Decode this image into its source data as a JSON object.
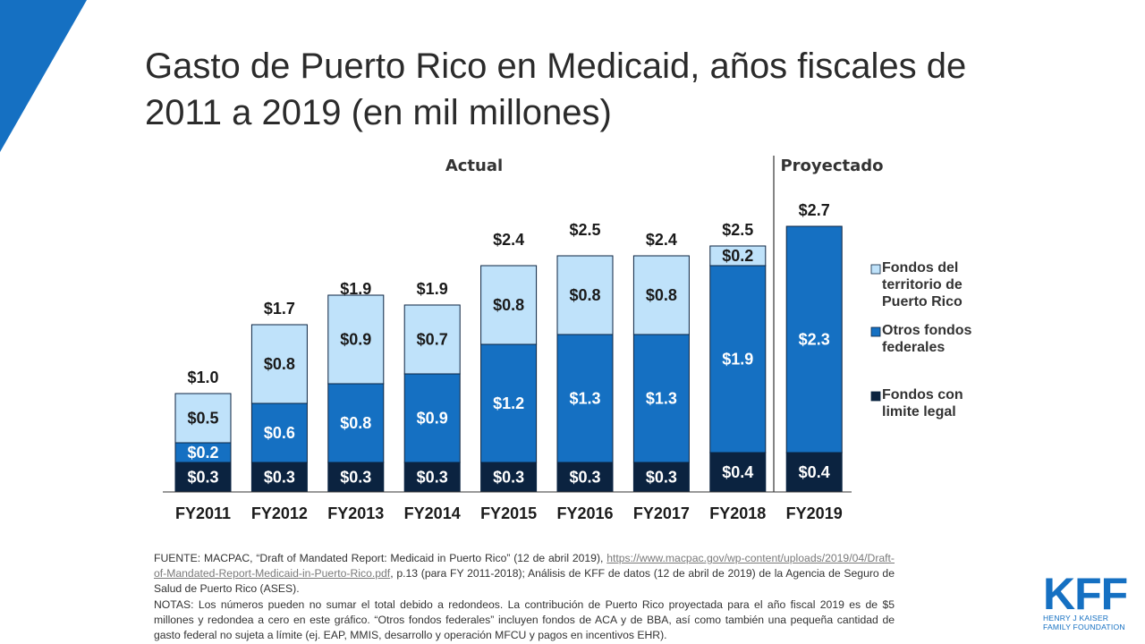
{
  "title": "Gasto de Puerto Rico en Medicaid, años fiscales de 2011 a 2019 (en mil millones)",
  "chart_data": {
    "type": "bar",
    "stacked": true,
    "title": "Gasto de Puerto Rico en Medicaid, años fiscales de 2011 a 2019 (en mil millones)",
    "categories": [
      "FY2011",
      "FY2012",
      "FY2013",
      "FY2014",
      "FY2015",
      "FY2016",
      "FY2017",
      "FY2018",
      "FY2019"
    ],
    "sections": [
      {
        "label": "Actual",
        "categories": [
          "FY2011",
          "FY2012",
          "FY2013",
          "FY2014",
          "FY2015",
          "FY2016",
          "FY2017",
          "FY2018"
        ]
      },
      {
        "label": "Proyectado",
        "categories": [
          "FY2019"
        ]
      }
    ],
    "series": [
      {
        "name": "Fondos con limite legal",
        "color": "#0b2340",
        "text_color": "#ffffff",
        "values": [
          0.3,
          0.3,
          0.3,
          0.3,
          0.3,
          0.3,
          0.3,
          0.4,
          0.4
        ],
        "labels": [
          "$0.3",
          "$0.3",
          "$0.3",
          "$0.3",
          "$0.3",
          "$0.3",
          "$0.3",
          "$0.4",
          "$0.4"
        ]
      },
      {
        "name": "Otros fondos federales",
        "color": "#1570c2",
        "text_color": "#ffffff",
        "values": [
          0.2,
          0.6,
          0.8,
          0.9,
          1.2,
          1.3,
          1.3,
          1.9,
          2.3
        ],
        "labels": [
          "$0.2",
          "$0.6",
          "$0.8",
          "$0.9",
          "$1.2",
          "$1.3",
          "$1.3",
          "$1.9",
          "$2.3"
        ]
      },
      {
        "name": "Fondos del territorio de Puerto Rico",
        "color": "#bfe2fa",
        "text_color": "#1a1a1a",
        "values": [
          0.5,
          0.8,
          0.9,
          0.7,
          0.8,
          0.8,
          0.8,
          0.2,
          0.0
        ],
        "labels": [
          "$0.5",
          "$0.8",
          "$0.9",
          "$0.7",
          "$0.8",
          "$0.8",
          "$0.8",
          "$0.2",
          ""
        ]
      }
    ],
    "totals": [
      1.0,
      1.7,
      1.9,
      1.9,
      2.4,
      2.5,
      2.4,
      2.5,
      2.7
    ],
    "total_labels": [
      "$1.0",
      "$1.7",
      "$1.9",
      "$1.9",
      "$2.4",
      "$2.5",
      "$2.4",
      "$2.5",
      "$2.7"
    ],
    "ylim": [
      0,
      2.8
    ],
    "xlabel": "",
    "ylabel": "",
    "legend": {
      "placement": "right",
      "items": [
        {
          "lines": [
            "Fondos del",
            "territorio de",
            "Puerto Rico"
          ],
          "color": "#bfe2fa"
        },
        {
          "lines": [
            "Otros fondos",
            "federales"
          ],
          "color": "#1570c2"
        },
        {
          "lines": [
            "Fondos con",
            "limite legal"
          ],
          "color": "#0b2340"
        }
      ]
    }
  },
  "notes": {
    "source_prefix": "FUENTE: MACPAC, “Draft of Mandated Report: Medicaid in Puerto Rico” (12 de abril 2019), ",
    "source_link_text": "https://www.macpac.gov/wp-content/uploads/2019/04/Draft-of-Mandated-Report-Medicaid-in-Puerto-Rico.pdf",
    "source_suffix": ", p.13 (para FY 2011-2018); Análisis de KFF de datos (12 de abril de 2019) de la Agencia de Seguro de Salud de Puerto Rico (ASES).",
    "notes_text": "NOTAS: Los números pueden no sumar el total debido a redondeos. La contribución de Puerto Rico proyectada para el año fiscal 2019 es de $5 millones y redondea a cero en este gráfico. “Otros fondos federales” incluyen fondos de ACA y de BBA, así como también una pequeña cantidad de gasto federal no sujeta a límite (ej. EAP, MMIS, desarrollo y operación MFCU y pagos en incentivos EHR)."
  },
  "logo": {
    "mark": "KFF",
    "line1": "HENRY J KAISER",
    "line2": "FAMILY FOUNDATION"
  },
  "colors": {
    "accent": "#1570c2",
    "navy": "#0b2340",
    "light": "#bfe2fa"
  }
}
